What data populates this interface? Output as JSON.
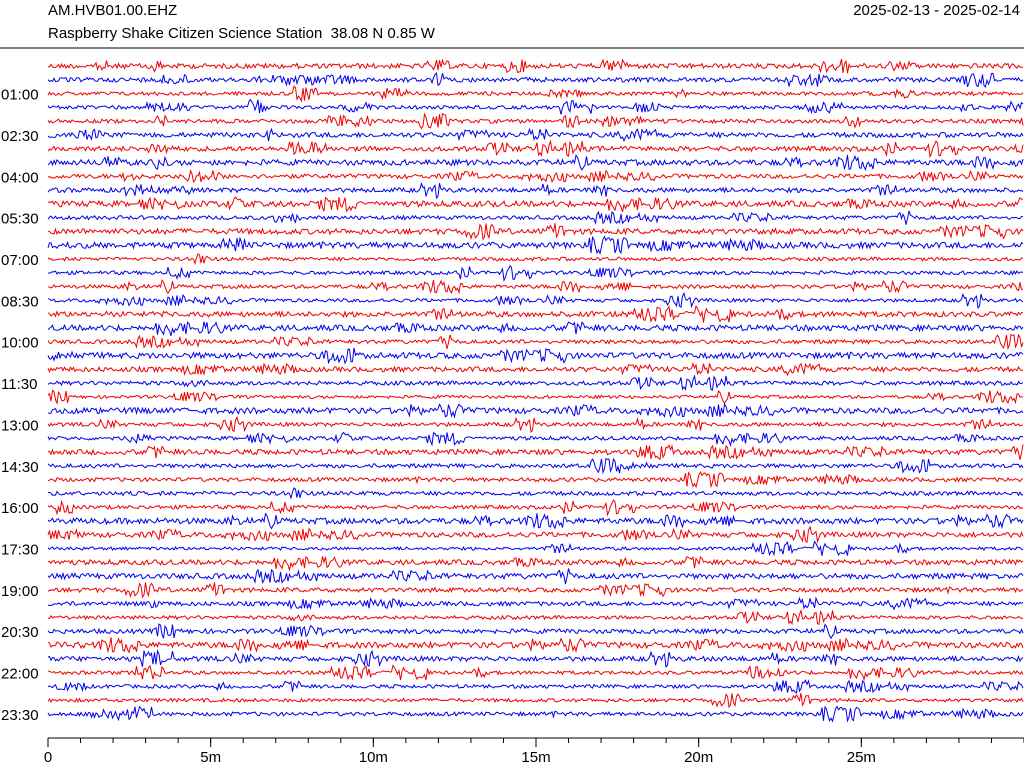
{
  "chart_data": {
    "type": "helicorder",
    "title": "AM.HVB01.00.EHZ",
    "subtitle": "Raspberry Shake Citizen Science Station  38.08 N 0.85 W",
    "date_range": "2025-02-13 - 2025-02-14",
    "categories": [
      null,
      null,
      "01:00",
      null,
      null,
      "02:30",
      null,
      null,
      "04:00",
      null,
      null,
      "05:30",
      null,
      null,
      "07:00",
      null,
      null,
      "08:30",
      null,
      null,
      "10:00",
      null,
      null,
      "11:30",
      null,
      null,
      "13:00",
      null,
      null,
      "14:30",
      null,
      null,
      "16:00",
      null,
      null,
      "17:30",
      null,
      null,
      "19:00",
      null,
      null,
      "20:30",
      null,
      null,
      "22:00",
      null,
      null,
      "23:30"
    ],
    "colors": [
      "#ee0000",
      "#0000ee"
    ],
    "xlim": [
      0,
      30
    ],
    "xticks": [
      0,
      {
        "value": 5,
        "label": "5m"
      },
      {
        "value": 10,
        "label": "10m"
      },
      {
        "value": 15,
        "label": "15m"
      },
      {
        "value": 20,
        "label": "20m"
      },
      {
        "value": 25,
        "label": "25m"
      }
    ],
    "xminor_step": 1
  }
}
